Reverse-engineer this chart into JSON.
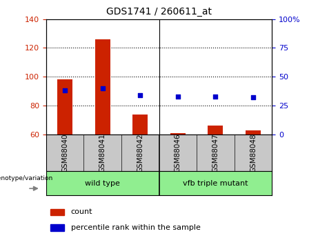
{
  "title": "GDS1741 / 260611_at",
  "samples": [
    "GSM88040",
    "GSM88041",
    "GSM88042",
    "GSM88046",
    "GSM88047",
    "GSM88048"
  ],
  "counts": [
    98,
    126,
    74,
    61,
    66,
    63
  ],
  "percentile_ranks_pct": [
    38,
    40,
    34,
    33,
    33,
    32
  ],
  "ylim_left": [
    60,
    140
  ],
  "ylim_right": [
    0,
    100
  ],
  "yticks_left": [
    60,
    80,
    100,
    120,
    140
  ],
  "yticks_right": [
    0,
    25,
    50,
    75,
    100
  ],
  "ytick_labels_right": [
    "0",
    "25",
    "50",
    "75",
    "100%"
  ],
  "bar_color": "#CC2200",
  "dot_color": "#0000CC",
  "bar_width": 0.4,
  "group1_label": "wild type",
  "group2_label": "vfb triple mutant",
  "group_color": "#90EE90",
  "group_color2": "#5CBF5C",
  "label_bg_color": "#C8C8C8",
  "legend_count_label": "count",
  "legend_pct_label": "percentile rank within the sample",
  "genotype_label": "genotype/variation"
}
